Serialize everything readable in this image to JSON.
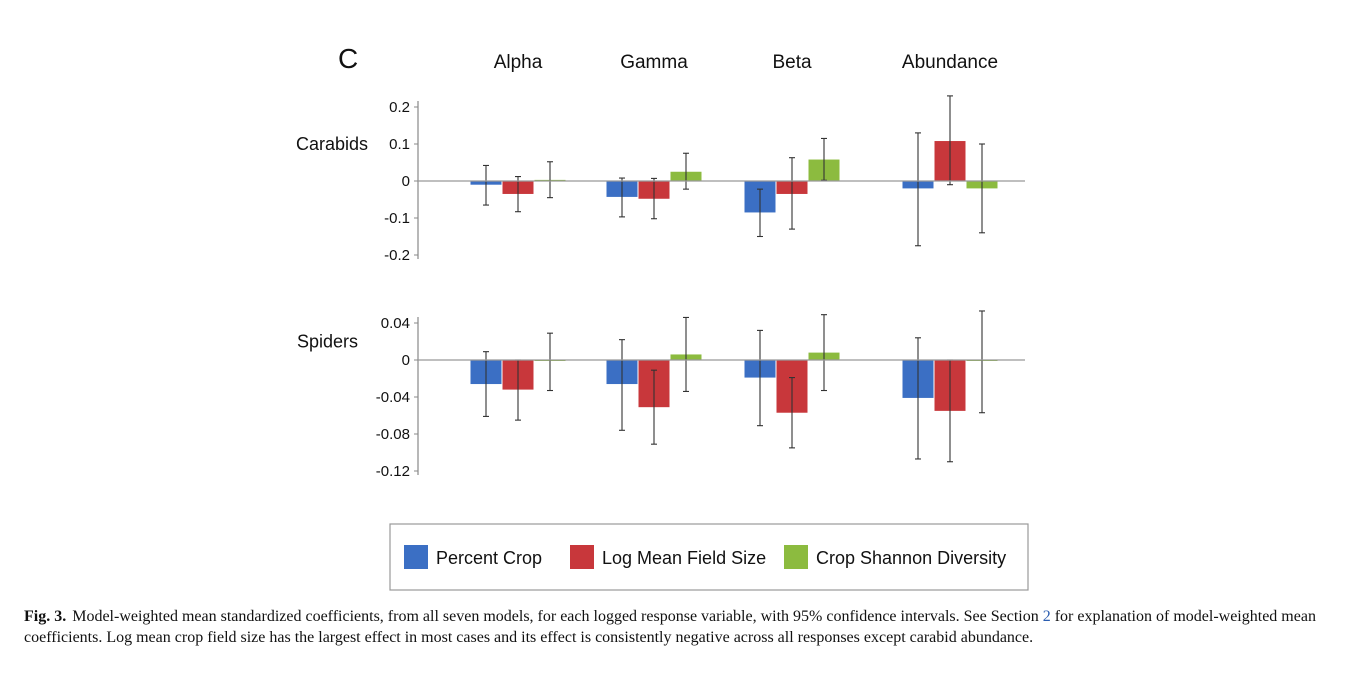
{
  "chart_data": {
    "type": "bar",
    "panel_label": "C",
    "categories": [
      "Alpha",
      "Gamma",
      "Beta",
      "Abundance"
    ],
    "legend": {
      "placement": "bottom",
      "entries": [
        {
          "name": "Percent Crop",
          "color": "#3b6fc4"
        },
        {
          "name": "Log Mean Field Size",
          "color": "#c8373b"
        },
        {
          "name": "Crop Shannon Diversity",
          "color": "#8cbb3f"
        }
      ]
    },
    "panels": [
      {
        "row_label": "Carabids",
        "ylim": [
          -0.2,
          0.2
        ],
        "yticks": [
          "0.2",
          "0.1",
          "0",
          "-0.1",
          "-0.2"
        ],
        "ytick_values": [
          0.2,
          0.1,
          0,
          -0.1,
          -0.2
        ],
        "series": [
          {
            "name": "Percent Crop",
            "values": [
              -0.01,
              -0.043,
              -0.085,
              -0.02
            ],
            "ci_low": [
              -0.065,
              -0.097,
              -0.15,
              -0.175
            ],
            "ci_high": [
              0.042,
              0.008,
              -0.022,
              0.13
            ]
          },
          {
            "name": "Log Mean Field Size",
            "values": [
              -0.035,
              -0.048,
              -0.035,
              0.108
            ],
            "ci_low": [
              -0.083,
              -0.102,
              -0.13,
              -0.01
            ],
            "ci_high": [
              0.012,
              0.007,
              0.063,
              0.23
            ]
          },
          {
            "name": "Crop Shannon Diversity",
            "values": [
              0.003,
              0.025,
              0.058,
              -0.02
            ],
            "ci_low": [
              -0.045,
              -0.022,
              0.002,
              -0.14
            ],
            "ci_high": [
              0.052,
              0.075,
              0.115,
              0.1
            ]
          }
        ]
      },
      {
        "row_label": "Spiders",
        "ylim": [
          -0.12,
          0.04
        ],
        "yticks": [
          "0.04",
          "0",
          "-0.04",
          "-0.08",
          "-0.12"
        ],
        "ytick_values": [
          0.04,
          0,
          -0.04,
          -0.08,
          -0.12
        ],
        "series": [
          {
            "name": "Percent Crop",
            "values": [
              -0.026,
              -0.026,
              -0.019,
              -0.041
            ],
            "ci_low": [
              -0.061,
              -0.076,
              -0.071,
              -0.107
            ],
            "ci_high": [
              0.009,
              0.022,
              0.032,
              0.024
            ]
          },
          {
            "name": "Log Mean Field Size",
            "values": [
              -0.032,
              -0.051,
              -0.057,
              -0.055
            ],
            "ci_low": [
              -0.065,
              -0.091,
              -0.095,
              -0.11
            ],
            "ci_high": [
              0.0,
              -0.011,
              -0.019,
              0.0
            ]
          },
          {
            "name": "Crop Shannon Diversity",
            "values": [
              -0.001,
              0.006,
              0.008,
              0.0
            ],
            "ci_low": [
              -0.033,
              -0.034,
              -0.033,
              -0.057
            ],
            "ci_high": [
              0.029,
              0.046,
              0.049,
              0.053
            ]
          }
        ]
      }
    ]
  },
  "caption": {
    "label": "Fig. 3.",
    "text_before_ref": "Model-weighted mean standardized coefficients, from all seven models, for each logged response variable, with 95% confidence intervals. See Section ",
    "ref": "2",
    "text_after_ref": " for explanation of model-weighted mean coefficients. Log mean crop field size has the largest effect in most cases and its effect is consistently negative across all responses except carabid abundance."
  }
}
